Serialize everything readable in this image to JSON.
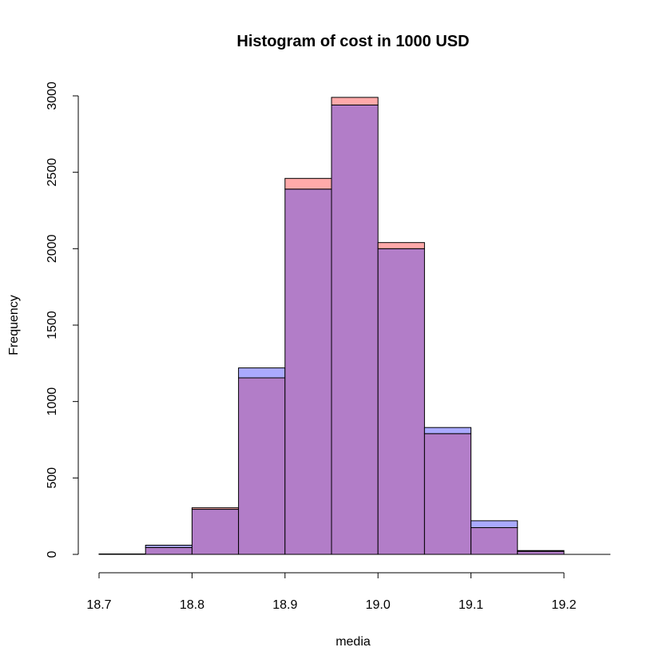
{
  "chart_data": {
    "type": "bar",
    "title": "Histogram of cost in 1000 USD",
    "xlabel": "media",
    "ylabel": "Frequency",
    "bin_edges": [
      18.7,
      18.75,
      18.8,
      18.85,
      18.9,
      18.95,
      19.0,
      19.05,
      19.1,
      19.15,
      19.2,
      19.25
    ],
    "x_ticks": [
      "18.7",
      "18.8",
      "18.9",
      "19.0",
      "19.1",
      "19.2"
    ],
    "y_ticks": [
      "0",
      "500",
      "1000",
      "1500",
      "2000",
      "2500",
      "3000"
    ],
    "xlim": [
      18.7,
      19.2
    ],
    "ylim": [
      0,
      3000
    ],
    "grid": false,
    "legend": "none",
    "series": [
      {
        "color": "#ffaaaa",
        "values": [
          3,
          45,
          305,
          1155,
          2460,
          2990,
          2040,
          790,
          175,
          25,
          0
        ]
      },
      {
        "color": "#aaaaff",
        "values": [
          2,
          60,
          295,
          1220,
          2390,
          2940,
          2000,
          830,
          220,
          20,
          0
        ]
      }
    ],
    "overlap_color": "#b27dc8"
  }
}
